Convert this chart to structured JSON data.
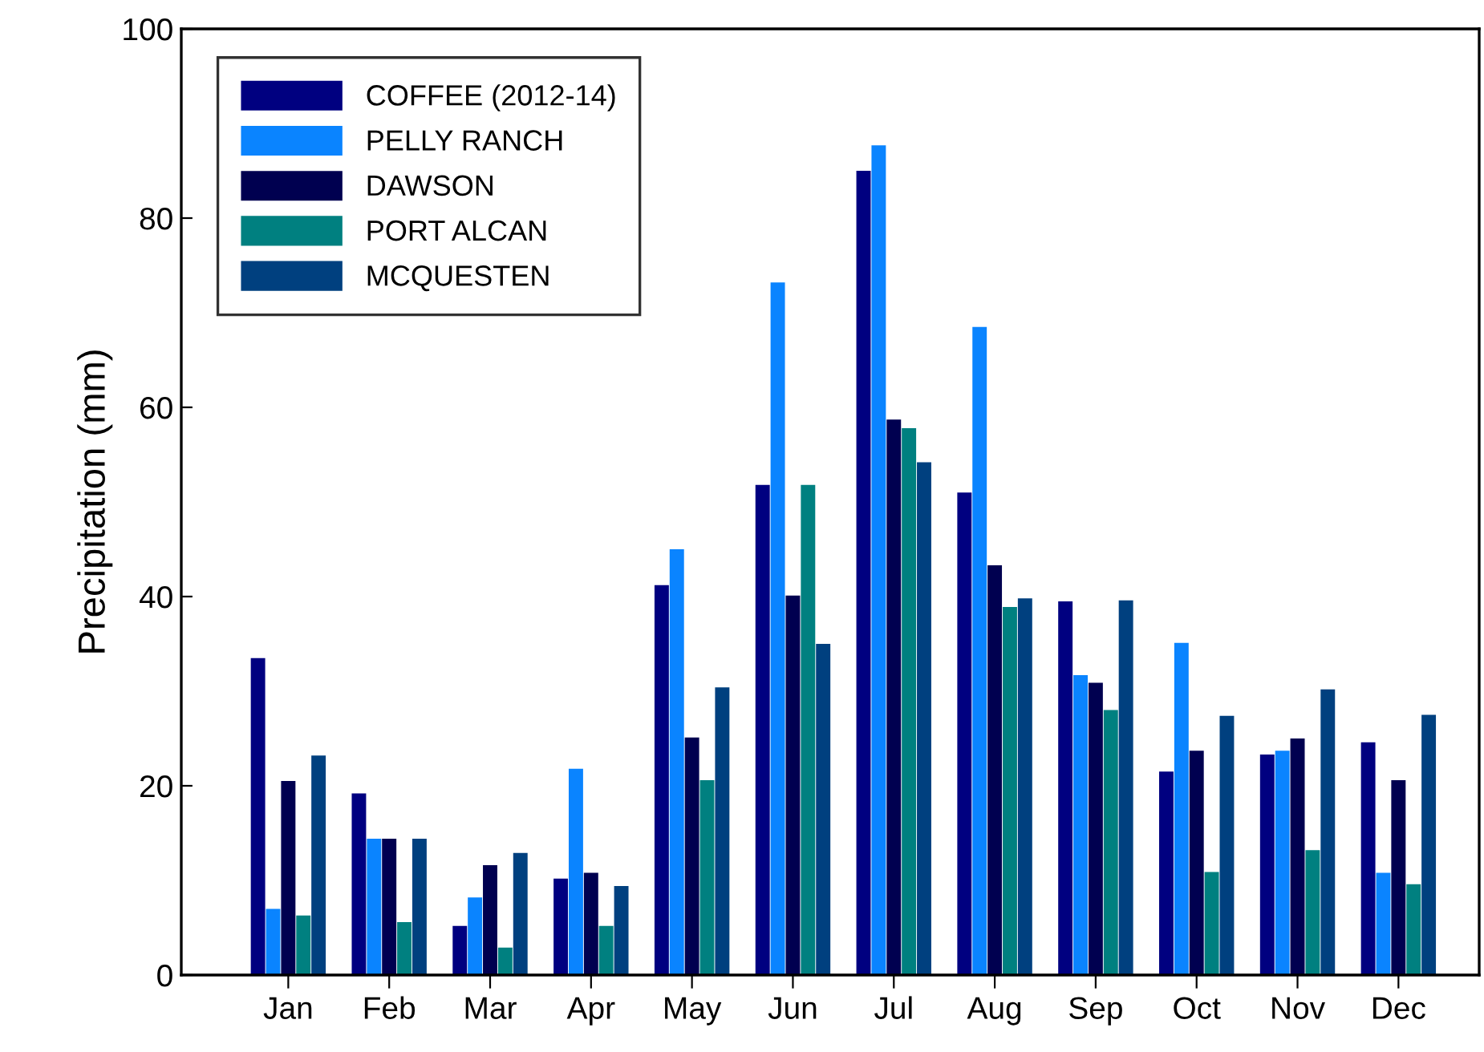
{
  "chart_data": {
    "type": "bar",
    "ylabel": "Precipitation (mm)",
    "categories": [
      "Jan",
      "Feb",
      "Mar",
      "Apr",
      "May",
      "Jun",
      "Jul",
      "Aug",
      "Sep",
      "Oct",
      "Nov",
      "Dec"
    ],
    "series": [
      {
        "name": "COFFEE (2012-14)",
        "color": "#000080",
        "values": [
          33.5,
          19.2,
          5.2,
          10.2,
          41.2,
          51.8,
          85.0,
          51.0,
          39.5,
          21.5,
          23.3,
          24.6
        ]
      },
      {
        "name": "PELLY RANCH",
        "color": "#0a84ff",
        "values": [
          7.0,
          14.4,
          8.2,
          21.8,
          45.0,
          73.2,
          87.7,
          68.5,
          31.7,
          35.1,
          23.7,
          10.8
        ]
      },
      {
        "name": "DAWSON",
        "color": "#000050",
        "values": [
          20.5,
          14.4,
          11.6,
          10.8,
          25.1,
          40.1,
          58.7,
          43.3,
          30.9,
          23.7,
          25.0,
          20.6
        ]
      },
      {
        "name": "PORT ALCAN",
        "color": "#008080",
        "values": [
          6.3,
          5.6,
          2.9,
          5.2,
          20.6,
          51.8,
          57.8,
          38.9,
          28.0,
          10.9,
          13.2,
          9.6
        ]
      },
      {
        "name": "MCQUESTEN",
        "color": "#00407f",
        "values": [
          23.2,
          14.4,
          12.9,
          9.4,
          30.4,
          35.0,
          54.2,
          39.8,
          39.6,
          27.4,
          30.2,
          27.5
        ]
      }
    ],
    "ylim": [
      0,
      100
    ],
    "yticks": [
      0,
      20,
      40,
      60,
      80,
      100
    ],
    "grid": false,
    "legend": "top left"
  }
}
